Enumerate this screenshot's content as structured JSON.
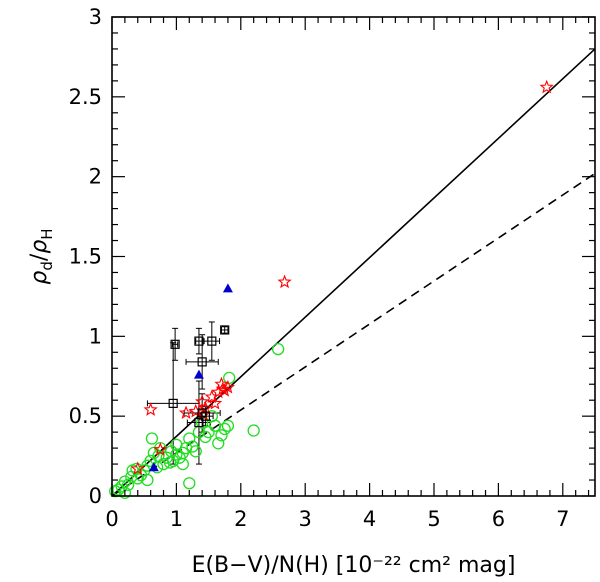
{
  "chart_data": {
    "type": "scatter",
    "title": "",
    "xlabel": "E(B−V)/N(H)  [10⁻²² cm² mag]",
    "ylabel": "ρd/ρH",
    "ylabel_parts": {
      "a": "ρ",
      "a_sub": "d",
      "slash": "/",
      "b": "ρ",
      "b_sub": "H"
    },
    "xlim": [
      0,
      7.5
    ],
    "ylim": [
      0,
      3
    ],
    "x_ticks": [
      {
        "value": 0,
        "label": "0"
      },
      {
        "value": 1,
        "label": "1"
      },
      {
        "value": 2,
        "label": "2"
      },
      {
        "value": 3,
        "label": "3"
      },
      {
        "value": 4,
        "label": "4"
      },
      {
        "value": 5,
        "label": "5"
      },
      {
        "value": 6,
        "label": "6"
      },
      {
        "value": 7,
        "label": "7"
      }
    ],
    "y_ticks": [
      {
        "value": 0,
        "label": "0"
      },
      {
        "value": 0.5,
        "label": "0.5"
      },
      {
        "value": 1,
        "label": "1"
      },
      {
        "value": 1.5,
        "label": "1.5"
      },
      {
        "value": 2,
        "label": "2"
      },
      {
        "value": 2.5,
        "label": "2.5"
      },
      {
        "value": 3,
        "label": "3"
      }
    ],
    "x_minor_step": 0.2,
    "y_minor_step": 0.1,
    "lines": [
      {
        "name": "solid fit",
        "style": "solid",
        "x": [
          0,
          7.5
        ],
        "y": [
          0,
          2.8
        ]
      },
      {
        "name": "dashed fit",
        "style": "dashed",
        "x": [
          0,
          7.5
        ],
        "y": [
          0,
          2.02
        ]
      }
    ],
    "series": [
      {
        "name": "green circles",
        "marker": "circle",
        "color": "#22dd22",
        "points": [
          [
            0.1,
            0.04
          ],
          [
            0.15,
            0.06
          ],
          [
            0.2,
            0.09
          ],
          [
            0.25,
            0.07
          ],
          [
            0.3,
            0.12
          ],
          [
            0.32,
            0.16
          ],
          [
            0.38,
            0.17
          ],
          [
            0.4,
            0.11
          ],
          [
            0.45,
            0.13
          ],
          [
            0.5,
            0.16
          ],
          [
            0.55,
            0.19
          ],
          [
            0.6,
            0.22
          ],
          [
            0.65,
            0.27
          ],
          [
            0.62,
            0.36
          ],
          [
            0.7,
            0.18
          ],
          [
            0.72,
            0.25
          ],
          [
            0.75,
            0.3
          ],
          [
            0.8,
            0.2
          ],
          [
            0.85,
            0.24
          ],
          [
            0.9,
            0.21
          ],
          [
            0.95,
            0.22
          ],
          [
            1.0,
            0.26
          ],
          [
            1.05,
            0.24
          ],
          [
            1.1,
            0.27
          ],
          [
            1.15,
            0.3
          ],
          [
            1.2,
            0.36
          ],
          [
            1.25,
            0.31
          ],
          [
            1.3,
            0.28
          ],
          [
            1.35,
            0.4
          ],
          [
            1.4,
            0.46
          ],
          [
            1.45,
            0.37
          ],
          [
            1.5,
            0.4
          ],
          [
            1.55,
            0.5
          ],
          [
            1.6,
            0.44
          ],
          [
            1.65,
            0.33
          ],
          [
            1.7,
            0.38
          ],
          [
            1.75,
            0.42
          ],
          [
            1.8,
            0.44
          ],
          [
            1.82,
            0.74
          ],
          [
            2.2,
            0.41
          ],
          [
            2.58,
            0.92
          ],
          [
            1.2,
            0.08
          ],
          [
            0.55,
            0.1
          ],
          [
            0.2,
            0.02
          ],
          [
            0.05,
            0.03
          ],
          [
            1.0,
            0.32
          ],
          [
            0.92,
            0.28
          ],
          [
            1.1,
            0.2
          ]
        ]
      },
      {
        "name": "red stars",
        "marker": "star",
        "color": "#ff0000",
        "points": [
          [
            6.75,
            2.56
          ],
          [
            2.68,
            1.34
          ],
          [
            0.6,
            0.54
          ],
          [
            0.75,
            0.29
          ],
          [
            1.15,
            0.52
          ],
          [
            1.3,
            0.53
          ],
          [
            1.4,
            0.59
          ],
          [
            1.42,
            0.51
          ],
          [
            1.55,
            0.62
          ],
          [
            1.6,
            0.58
          ],
          [
            1.65,
            0.65
          ],
          [
            1.7,
            0.7
          ],
          [
            1.72,
            0.67
          ],
          [
            1.75,
            0.66
          ],
          [
            1.8,
            0.68
          ],
          [
            0.4,
            0.17
          ],
          [
            1.45,
            0.55
          ]
        ]
      },
      {
        "name": "blue triangles",
        "marker": "triangle",
        "color": "#0000cc",
        "points": [
          [
            1.8,
            1.3
          ],
          [
            1.35,
            0.76
          ],
          [
            0.65,
            0.18
          ]
        ]
      },
      {
        "name": "squares with error bars",
        "marker": "square",
        "color": "#000000",
        "points": [
          {
            "x": 0.98,
            "y": 0.95,
            "xerr": 0.04,
            "yerr": 0.1
          },
          {
            "x": 1.35,
            "y": 0.97,
            "xerr": 0.05,
            "yerr": 0.08
          },
          {
            "x": 1.55,
            "y": 0.97,
            "xerr": 0.12,
            "yerr": 0.12
          },
          {
            "x": 1.75,
            "y": 1.04,
            "xerr": 0.05,
            "yerr": 0.02
          },
          {
            "x": 1.4,
            "y": 0.84,
            "xerr": 0.25,
            "yerr": 0.17
          },
          {
            "x": 0.95,
            "y": 0.58,
            "xerr": 0.4,
            "yerr": 0.38
          },
          {
            "x": 1.4,
            "y": 0.52,
            "xerr": 0.28,
            "yerr": 0.12
          },
          {
            "x": 1.35,
            "y": 0.46,
            "xerr": 0.18,
            "yerr": 0.26
          },
          {
            "x": 1.45,
            "y": 0.5,
            "xerr": 0.12,
            "yerr": 0.06
          }
        ]
      }
    ]
  }
}
